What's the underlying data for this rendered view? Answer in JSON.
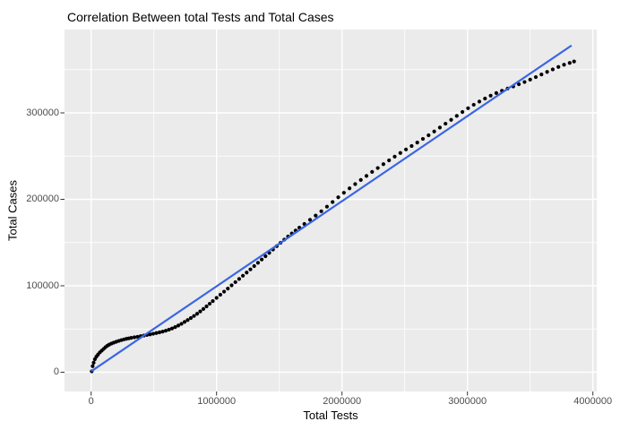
{
  "chart_data": {
    "type": "scatter",
    "title": "Correlation Between total Tests and Total Cases",
    "xlabel": "Total Tests",
    "ylabel": "Total Cases",
    "x_tick_values": [
      0,
      1000000,
      2000000,
      3000000,
      4000000
    ],
    "x_tick_labels": [
      "0",
      "1000000",
      "2000000",
      "3000000",
      "4000000"
    ],
    "y_tick_values": [
      0,
      100000,
      200000,
      300000
    ],
    "y_tick_labels": [
      "0",
      "100000",
      "200000",
      "300000"
    ],
    "x_minor_values": [
      500000,
      1500000,
      2500000,
      3500000
    ],
    "y_minor_values": [
      50000,
      150000,
      250000,
      350000
    ],
    "xlim": [
      -210000,
      4030000
    ],
    "ylim": [
      -22000,
      396000
    ],
    "grid": true,
    "legend_position": "none",
    "panel_background": "#EBEBEB",
    "gridline_color": "#FFFFFF",
    "tick_mark_color": "#333333",
    "tick_label_color": "#4D4D4D",
    "series": [
      {
        "name": "observed-data",
        "type": "points",
        "color": "#000000",
        "points": [
          [
            5000,
            1000
          ],
          [
            12000,
            7000
          ],
          [
            20000,
            11000
          ],
          [
            30000,
            15000
          ],
          [
            42000,
            18000
          ],
          [
            55000,
            20500
          ],
          [
            70000,
            23000
          ],
          [
            85000,
            25000
          ],
          [
            100000,
            27000
          ],
          [
            115000,
            29000
          ],
          [
            130000,
            30700
          ],
          [
            145000,
            32000
          ],
          [
            162000,
            33200
          ],
          [
            180000,
            34200
          ],
          [
            200000,
            35200
          ],
          [
            220000,
            36200
          ],
          [
            240000,
            37100
          ],
          [
            260000,
            37900
          ],
          [
            280000,
            38600
          ],
          [
            300000,
            39200
          ],
          [
            320000,
            39800
          ],
          [
            345000,
            40400
          ],
          [
            370000,
            41000
          ],
          [
            395000,
            41700
          ],
          [
            420000,
            42400
          ],
          [
            445000,
            43100
          ],
          [
            470000,
            43800
          ],
          [
            495000,
            44500
          ],
          [
            520000,
            45300
          ],
          [
            545000,
            46100
          ],
          [
            570000,
            47000
          ],
          [
            595000,
            48000
          ],
          [
            620000,
            49200
          ],
          [
            645000,
            50600
          ],
          [
            670000,
            52200
          ],
          [
            695000,
            54000
          ],
          [
            720000,
            56000
          ],
          [
            745000,
            58200
          ],
          [
            770000,
            60400
          ],
          [
            795000,
            62700
          ],
          [
            820000,
            65100
          ],
          [
            845000,
            67600
          ],
          [
            870000,
            70300
          ],
          [
            895000,
            73200
          ],
          [
            920000,
            76200
          ],
          [
            945000,
            79200
          ],
          [
            970000,
            82300
          ],
          [
            1000000,
            86000
          ],
          [
            1030000,
            89600
          ],
          [
            1060000,
            93200
          ],
          [
            1090000,
            96800
          ],
          [
            1120000,
            100500
          ],
          [
            1150000,
            104200
          ],
          [
            1180000,
            107900
          ],
          [
            1210000,
            111600
          ],
          [
            1240000,
            115300
          ],
          [
            1270000,
            119000
          ],
          [
            1300000,
            122800
          ],
          [
            1330000,
            126600
          ],
          [
            1360000,
            130400
          ],
          [
            1390000,
            134200
          ],
          [
            1420000,
            138100
          ],
          [
            1450000,
            142000
          ],
          [
            1480000,
            145900
          ],
          [
            1510000,
            149700
          ],
          [
            1540000,
            153400
          ],
          [
            1570000,
            157000
          ],
          [
            1600000,
            160500
          ],
          [
            1630000,
            163900
          ],
          [
            1660000,
            167200
          ],
          [
            1700000,
            171500
          ],
          [
            1745000,
            176300
          ],
          [
            1790000,
            181200
          ],
          [
            1835000,
            186200
          ],
          [
            1880000,
            191500
          ],
          [
            1925000,
            196900
          ],
          [
            1970000,
            202300
          ],
          [
            2015000,
            207600
          ],
          [
            2060000,
            212700
          ],
          [
            2105000,
            217600
          ],
          [
            2150000,
            222400
          ],
          [
            2195000,
            227100
          ],
          [
            2240000,
            231700
          ],
          [
            2285000,
            236200
          ],
          [
            2330000,
            240700
          ],
          [
            2375000,
            245100
          ],
          [
            2420000,
            249400
          ],
          [
            2465000,
            253600
          ],
          [
            2510000,
            257700
          ],
          [
            2555000,
            261700
          ],
          [
            2600000,
            265700
          ],
          [
            2645000,
            269900
          ],
          [
            2690000,
            274100
          ],
          [
            2735000,
            278500
          ],
          [
            2780000,
            283000
          ],
          [
            2825000,
            287500
          ],
          [
            2870000,
            292000
          ],
          [
            2915000,
            296500
          ],
          [
            2960000,
            301000
          ],
          [
            3005000,
            305400
          ],
          [
            3050000,
            309400
          ],
          [
            3095000,
            313100
          ],
          [
            3140000,
            316600
          ],
          [
            3185000,
            319900
          ],
          [
            3230000,
            322900
          ],
          [
            3275000,
            325600
          ],
          [
            3320000,
            328100
          ],
          [
            3365000,
            330600
          ],
          [
            3410000,
            333100
          ],
          [
            3455000,
            335700
          ],
          [
            3500000,
            338500
          ],
          [
            3545000,
            341400
          ],
          [
            3590000,
            344400
          ],
          [
            3635000,
            347400
          ],
          [
            3680000,
            350300
          ],
          [
            3725000,
            353100
          ],
          [
            3770000,
            355700
          ],
          [
            3815000,
            357800
          ],
          [
            3850000,
            359500
          ]
        ]
      },
      {
        "name": "linear-fit",
        "type": "line",
        "color": "#3A66E3",
        "points": [
          [
            0,
            1000
          ],
          [
            3830000,
            378000
          ]
        ]
      }
    ]
  }
}
